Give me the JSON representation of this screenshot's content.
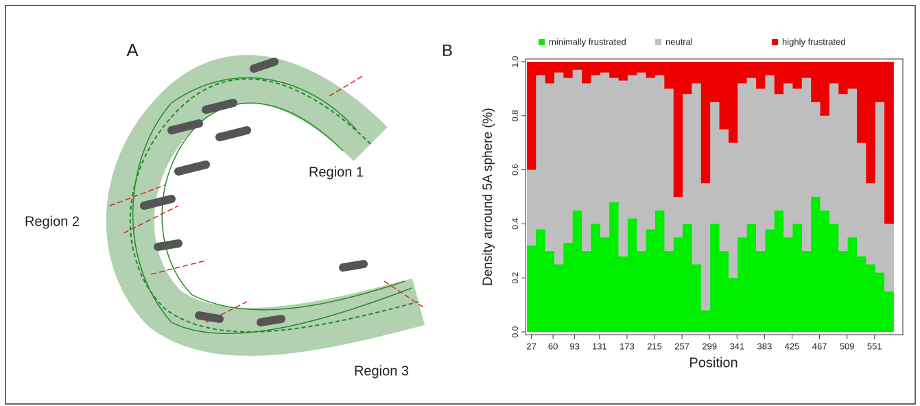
{
  "panel_a": {
    "label": "A",
    "regions": [
      "Region 1",
      "Region 2",
      "Region 3"
    ]
  },
  "chart_data": {
    "type": "stacked_bar",
    "panel_label": "B",
    "xlabel": "Position",
    "ylabel": "Density arround 5A sphere (%)",
    "x": [
      27,
      41,
      55,
      69,
      83,
      97,
      111,
      125,
      139,
      153,
      167,
      181,
      195,
      209,
      223,
      237,
      251,
      265,
      279,
      293,
      307,
      321,
      335,
      349,
      363,
      377,
      391,
      405,
      419,
      433,
      447,
      461,
      475,
      489,
      503,
      517,
      531,
      545,
      559,
      573
    ],
    "series": [
      {
        "name": "minimally frustrated",
        "color": "#00ee00",
        "values": [
          0.32,
          0.38,
          0.3,
          0.25,
          0.33,
          0.45,
          0.3,
          0.4,
          0.35,
          0.48,
          0.28,
          0.42,
          0.3,
          0.38,
          0.45,
          0.3,
          0.35,
          0.4,
          0.25,
          0.08,
          0.4,
          0.3,
          0.2,
          0.35,
          0.4,
          0.3,
          0.38,
          0.45,
          0.35,
          0.4,
          0.3,
          0.5,
          0.45,
          0.4,
          0.3,
          0.35,
          0.28,
          0.25,
          0.22,
          0.15
        ]
      },
      {
        "name": "neutral",
        "color": "#bebebe",
        "values": [
          0.28,
          0.57,
          0.62,
          0.71,
          0.61,
          0.52,
          0.62,
          0.55,
          0.61,
          0.46,
          0.65,
          0.53,
          0.66,
          0.56,
          0.5,
          0.6,
          0.15,
          0.48,
          0.67,
          0.47,
          0.45,
          0.45,
          0.5,
          0.57,
          0.54,
          0.6,
          0.57,
          0.43,
          0.57,
          0.5,
          0.64,
          0.35,
          0.35,
          0.52,
          0.58,
          0.55,
          0.42,
          0.3,
          0.63,
          0.25
        ]
      },
      {
        "name": "highly frustrated",
        "color": "#ee0000",
        "values": [
          0.4,
          0.05,
          0.08,
          0.04,
          0.06,
          0.03,
          0.08,
          0.05,
          0.04,
          0.06,
          0.07,
          0.05,
          0.04,
          0.06,
          0.05,
          0.1,
          0.5,
          0.12,
          0.08,
          0.45,
          0.15,
          0.25,
          0.3,
          0.08,
          0.06,
          0.1,
          0.05,
          0.12,
          0.08,
          0.1,
          0.06,
          0.15,
          0.2,
          0.08,
          0.12,
          0.1,
          0.3,
          0.45,
          0.15,
          0.6
        ]
      }
    ],
    "xlim": [
      18,
      590
    ],
    "xticks": [
      27,
      60,
      93,
      131,
      173,
      215,
      257,
      299,
      341,
      383,
      425,
      467,
      509,
      551
    ],
    "ylim": [
      0,
      1
    ],
    "yticks": [
      {
        "value": 0,
        "label": "0.0"
      },
      {
        "value": 0.2,
        "label": "0.2"
      },
      {
        "value": 0.4,
        "label": "0.4"
      },
      {
        "value": 0.6,
        "label": "0.6"
      },
      {
        "value": 0.8,
        "label": "0.8"
      },
      {
        "value": 1,
        "label": "1.0"
      }
    ]
  }
}
